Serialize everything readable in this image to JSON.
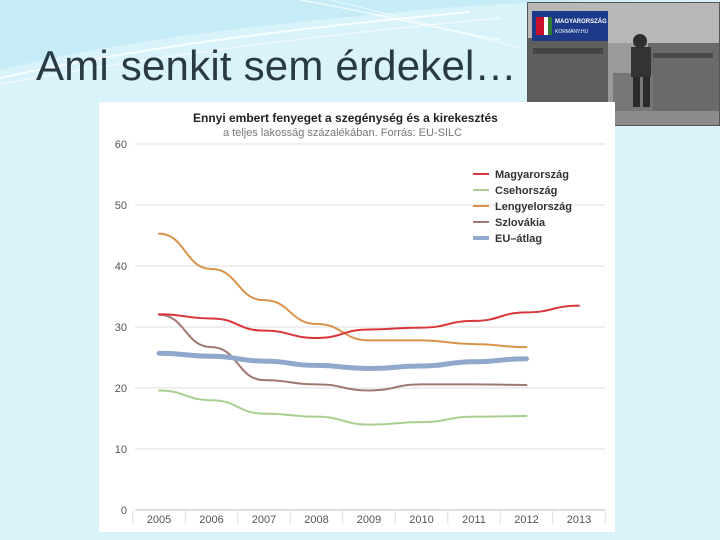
{
  "slide": {
    "title": "Ami senkit sem érdekel…"
  },
  "photo": {
    "icon": "dumpster-photo",
    "sign_line1": "MAGYARORSZÁG",
    "sign_line2": "KORMÁNY.HU"
  },
  "colors": {
    "background": "#d9f3fb",
    "grid": "#dddddd"
  },
  "chart_data": {
    "type": "line",
    "title": "Ennyi embert fenyeget a szegénység és a kirekesztés",
    "subtitle": "a teljes lakosság százalékában. Forrás: EU-SILC",
    "x": [
      "2005",
      "2006",
      "2007",
      "2008",
      "2009",
      "2010",
      "2011",
      "2012",
      "2013"
    ],
    "ylim": [
      0,
      60
    ],
    "yticks": [
      "0",
      "10",
      "20",
      "30",
      "40",
      "50",
      "60"
    ],
    "grid": true,
    "legend": "right",
    "series": [
      {
        "name": "Magyarország",
        "color": "#d9363b",
        "width": 2,
        "values": [
          32.1,
          31.4,
          29.4,
          28.2,
          29.6,
          29.9,
          31.0,
          32.4,
          33.5
        ]
      },
      {
        "name": "Csehország",
        "color": "#a8cf8f",
        "width": 2,
        "values": [
          19.6,
          18.0,
          15.8,
          15.3,
          14.0,
          14.4,
          15.3,
          15.4,
          null
        ]
      },
      {
        "name": "Lengyelország",
        "color": "#d9924a",
        "width": 2,
        "values": [
          45.3,
          39.5,
          34.4,
          30.5,
          27.8,
          27.8,
          27.2,
          26.7,
          null
        ]
      },
      {
        "name": "Szlovákia",
        "color": "#a07870",
        "width": 2,
        "values": [
          32.0,
          26.7,
          21.3,
          20.6,
          19.6,
          20.6,
          20.6,
          20.5,
          null
        ]
      },
      {
        "name": "EU–átlag",
        "color": "#8fa8cc",
        "width": 5,
        "values": [
          25.7,
          25.2,
          24.4,
          23.7,
          23.2,
          23.6,
          24.3,
          24.8,
          null
        ]
      }
    ]
  }
}
